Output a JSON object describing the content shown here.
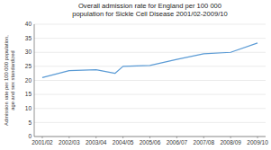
{
  "chart_data": {
    "type": "line",
    "title": "Overall admission rate for England per 100 000\npopulation for Sickle Cell Disease 2001/02-2009/10",
    "y_label": "Admission rate per 100 000 population,\nage and sex standardized",
    "x": [
      0,
      1,
      2,
      2.7,
      3,
      4,
      5,
      6,
      7,
      8
    ],
    "values": [
      21.0,
      23.5,
      23.8,
      22.5,
      25.0,
      25.3,
      27.5,
      29.5,
      30.0,
      33.3
    ],
    "color": "#5b9bd5",
    "xlim": [
      -0.3,
      8.3
    ],
    "xticks": [
      {
        "value": 0,
        "label": "2001/02"
      },
      {
        "value": 1,
        "label": "2002/03"
      },
      {
        "value": 2,
        "label": "2003/04"
      },
      {
        "value": 3,
        "label": "2004/05"
      },
      {
        "value": 4,
        "label": "2005/06"
      },
      {
        "value": 5,
        "label": "2006/07"
      },
      {
        "value": 6,
        "label": "2007/08"
      },
      {
        "value": 7,
        "label": "2008/09"
      },
      {
        "value": 8,
        "label": "2009/10"
      }
    ],
    "ylim": [
      0,
      40
    ],
    "yticks": [
      0,
      5,
      10,
      15,
      20,
      25,
      30,
      35,
      40
    ],
    "grid": true
  }
}
